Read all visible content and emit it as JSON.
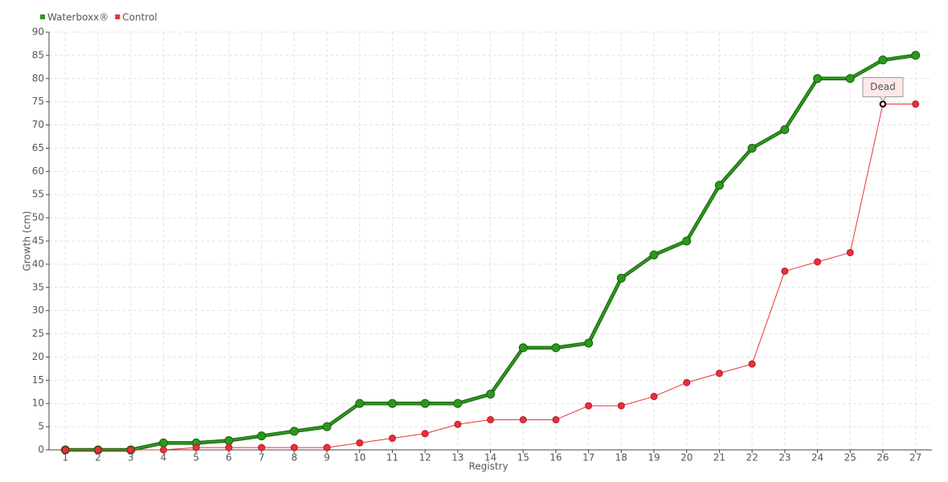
{
  "chart_data": {
    "type": "line",
    "xlabel": "Registry",
    "ylabel": "Growth (cm)",
    "x": [
      1,
      2,
      3,
      4,
      5,
      6,
      7,
      8,
      9,
      10,
      11,
      12,
      13,
      14,
      15,
      16,
      17,
      18,
      19,
      20,
      21,
      22,
      23,
      24,
      25,
      26,
      27
    ],
    "series": [
      {
        "name": "Waterboxx®",
        "color": "#2a9a1a",
        "values": [
          0,
          0,
          0,
          1.5,
          1.5,
          2,
          3,
          4,
          5,
          10,
          10,
          10,
          10,
          12,
          22,
          22,
          23,
          37,
          42,
          45,
          57,
          65,
          69,
          80,
          80,
          84,
          85
        ]
      },
      {
        "name": "Control",
        "color": "#e8303a",
        "values": [
          0,
          0,
          0,
          0,
          0.5,
          0.5,
          0.5,
          0.5,
          0.5,
          1.5,
          2.5,
          3.5,
          5.5,
          6.5,
          6.5,
          6.5,
          9.5,
          9.5,
          11.5,
          14.5,
          16.5,
          18.5,
          38.5,
          40.5,
          42.5,
          74.5,
          74.5
        ]
      }
    ],
    "annotations": [
      {
        "text": "Dead",
        "x": 26,
        "y": 74.5
      }
    ],
    "xlim": [
      0.5,
      27.5
    ],
    "xticks": [
      1,
      2,
      3,
      4,
      5,
      6,
      7,
      8,
      9,
      10,
      11,
      12,
      13,
      14,
      15,
      16,
      17,
      18,
      19,
      20,
      21,
      22,
      23,
      24,
      25,
      26,
      27
    ],
    "ylim": [
      0,
      90
    ],
    "yticks": [
      0,
      5,
      10,
      15,
      20,
      25,
      30,
      35,
      40,
      45,
      50,
      55,
      60,
      65,
      70,
      75,
      80,
      85,
      90
    ],
    "grid": true,
    "legend": "top-left"
  }
}
